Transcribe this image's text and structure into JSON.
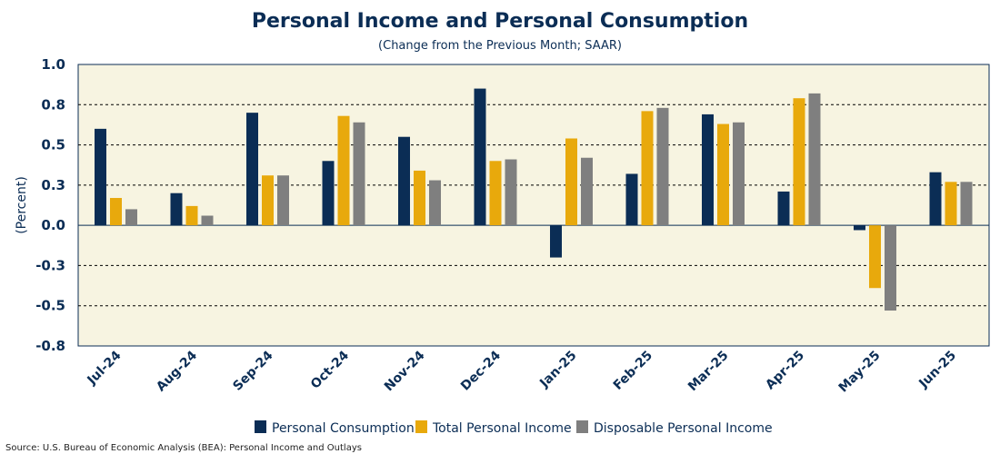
{
  "chart_data": {
    "type": "bar",
    "title": "Personal Income and Personal Consumption",
    "subtitle": "(Change from the Previous Month; SAAR)",
    "xlabel": "",
    "ylabel": "(Percent)",
    "ylim": [
      -0.75,
      1.0
    ],
    "yticks": [
      1.0,
      0.75,
      0.5,
      0.25,
      0.0,
      -0.25,
      -0.5,
      -0.75
    ],
    "ytick_labels": [
      "1.0",
      "0.8",
      "0.5",
      "0.3",
      "0.0",
      "-0.3",
      "-0.5",
      "-0.8"
    ],
    "grid": "horizontal dashed",
    "legend_position": "bottom",
    "categories": [
      "Jul-24",
      "Aug-24",
      "Sep-24",
      "Oct-24",
      "Nov-24",
      "Dec-24",
      "Jan-25",
      "Feb-25",
      "Mar-25",
      "Apr-25",
      "May-25",
      "Jun-25"
    ],
    "series": [
      {
        "name": "Personal Consumption",
        "color": "#0b2d55",
        "values": [
          0.6,
          0.2,
          0.7,
          0.4,
          0.55,
          0.85,
          -0.2,
          0.32,
          0.69,
          0.21,
          -0.03,
          0.33
        ]
      },
      {
        "name": "Total Personal Income",
        "color": "#e8a90c",
        "values": [
          0.17,
          0.12,
          0.31,
          0.68,
          0.34,
          0.4,
          0.54,
          0.71,
          0.63,
          0.79,
          -0.39,
          0.27
        ]
      },
      {
        "name": "Disposable Personal Income",
        "color": "#7f7f7f",
        "values": [
          0.1,
          0.06,
          0.31,
          0.64,
          0.28,
          0.41,
          0.42,
          0.73,
          0.64,
          0.82,
          -0.53,
          0.27
        ]
      }
    ],
    "source": "Source: U.S. Bureau of Economic Analysis (BEA): Personal Income and Outlays"
  }
}
